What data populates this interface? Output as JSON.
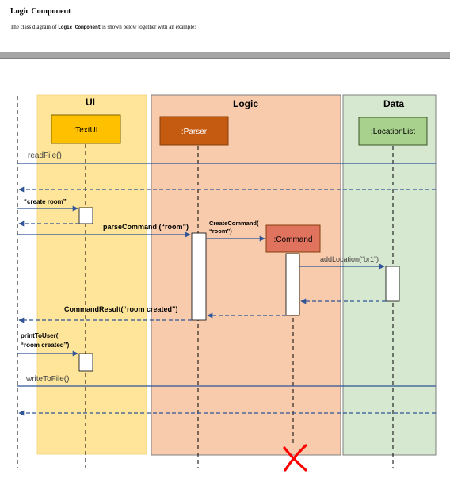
{
  "document": {
    "heading": "Logic Component",
    "intro_before": "The class diagram of ",
    "intro_code": "Logic Component",
    "intro_after": " is shown below together with an example:"
  },
  "diagram": {
    "lanes": {
      "ui": "UI",
      "logic": "Logic",
      "data": "Data"
    },
    "participants": {
      "textui": ":TextUI",
      "parser": ":Parser",
      "locationlist": ":LocationList",
      "command": ":Command"
    },
    "messages": {
      "read_file": "readFile()",
      "create_room": "“create room”",
      "parse_command": "parseCommand (“room”)",
      "create_command_1": "CreateCommand(",
      "create_command_2": "“room”)",
      "add_location": "addLocation(“br1”)",
      "command_result": "CommandResult(“room created”)",
      "print_to_user_1": "printToUser(",
      "print_to_user_2": "“room created”)",
      "write_to_file": "writeToFile()"
    },
    "colors": {
      "ui_lane": "#fee599",
      "logic_lane": "#f8cbad",
      "data_lane": "#d6e8cf",
      "textui_box": "#ffc000",
      "parser_box": "#c55a11",
      "locationlist_box": "#a9d18e",
      "command_box": "#e0735e",
      "destroy_mark": "#ff0000",
      "arrow": "#2f5597"
    }
  }
}
